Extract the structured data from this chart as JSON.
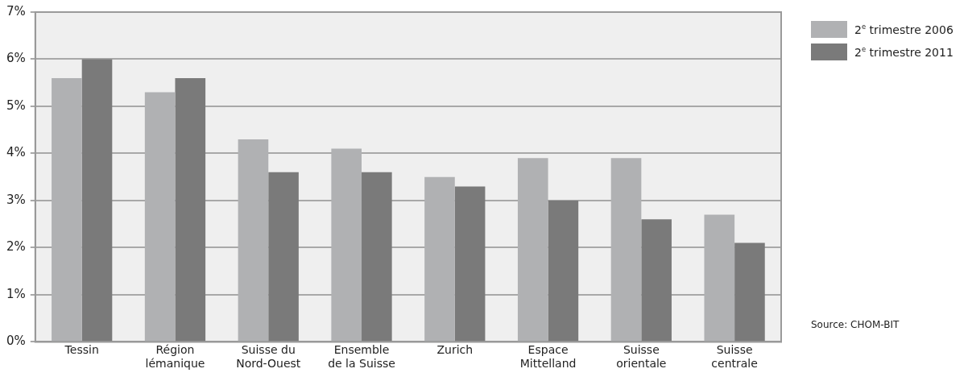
{
  "chart_data": {
    "type": "bar",
    "categories": [
      "Tessin",
      "Région\nlémanique",
      "Suisse du\nNord-Ouest",
      "Ensemble\nde la Suisse",
      "Zurich",
      "Espace\nMittelland",
      "Suisse\norientale",
      "Suisse\ncentrale"
    ],
    "series": [
      {
        "name": "2$^{e}$ trimestre 2006",
        "color": "#b0b1b3",
        "values": [
          5.6,
          5.3,
          4.3,
          4.1,
          3.5,
          3.9,
          3.9,
          2.7
        ]
      },
      {
        "name": "2$^{e}$ trimestre 2011",
        "color": "#7a7a7a",
        "values": [
          6.0,
          5.6,
          3.6,
          3.6,
          3.3,
          3.0,
          2.6,
          2.1
        ]
      }
    ],
    "ylim": [
      0,
      7
    ],
    "yticks": [
      {
        "value": 0,
        "label": "0%"
      },
      {
        "value": 1,
        "label": "1%"
      },
      {
        "value": 2,
        "label": "2%"
      },
      {
        "value": 3,
        "label": "3%"
      },
      {
        "value": 4,
        "label": "4%"
      },
      {
        "value": 5,
        "label": "5%"
      },
      {
        "value": 6,
        "label": "6%"
      },
      {
        "value": 7,
        "label": "7%"
      }
    ],
    "grid": "y",
    "legend": "top right",
    "annotations": [
      "Source: CHOM-BIT"
    ]
  }
}
